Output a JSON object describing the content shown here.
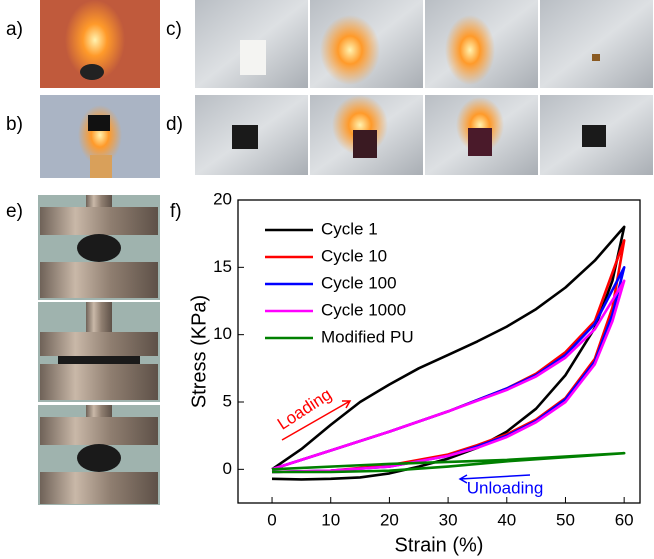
{
  "panel_labels": [
    "a)",
    "b)",
    "c)",
    "d)",
    "e)",
    "f)"
  ],
  "chart_data": {
    "type": "line",
    "xlabel": "Strain (%)",
    "ylabel": "Stress (KPa)",
    "xlim": [
      -5.8,
      62.7
    ],
    "ylim": [
      -2.5,
      20
    ],
    "xticks": [
      0,
      10,
      20,
      30,
      40,
      50,
      60
    ],
    "yticks": [
      0,
      5,
      10,
      15,
      20
    ],
    "annotations": [
      "Loading",
      "Unloading"
    ],
    "series": [
      {
        "name": "Cycle 1",
        "color": "#000000",
        "x": [
          0,
          5,
          10,
          15,
          20,
          25,
          30,
          35,
          40,
          45,
          50,
          55,
          60,
          58,
          55,
          50,
          45,
          40,
          35,
          30,
          25,
          20,
          15,
          10,
          5,
          0
        ],
        "values": [
          0,
          1.5,
          3.3,
          5,
          6.3,
          7.5,
          8.5,
          9.5,
          10.6,
          11.9,
          13.5,
          15.5,
          18,
          14,
          10.5,
          7,
          4.5,
          2.8,
          1.6,
          0.8,
          0.2,
          -0.3,
          -0.6,
          -0.7,
          -0.75,
          -0.7
        ]
      },
      {
        "name": "Cycle 10",
        "color": "#ff0000",
        "x": [
          0,
          10,
          20,
          30,
          40,
          45,
          50,
          55,
          60,
          58,
          55,
          50,
          45,
          40,
          35,
          30,
          20,
          10,
          0
        ],
        "values": [
          0,
          1.4,
          2.8,
          4.3,
          6,
          7.1,
          8.7,
          11,
          17,
          12,
          8.2,
          5.3,
          3.7,
          2.6,
          1.8,
          1.1,
          0.3,
          -0.1,
          -0.2
        ]
      },
      {
        "name": "Cycle 100",
        "color": "#0000ff",
        "x": [
          0,
          10,
          20,
          30,
          40,
          45,
          50,
          55,
          60,
          58,
          55,
          50,
          45,
          40,
          35,
          30,
          20,
          10,
          0
        ],
        "values": [
          0,
          1.4,
          2.8,
          4.3,
          6,
          7,
          8.5,
          10.8,
          15,
          11.5,
          8,
          5.2,
          3.6,
          2.5,
          1.7,
          1,
          0.2,
          -0.1,
          -0.2
        ]
      },
      {
        "name": "Cycle 1000",
        "color": "#ff00ff",
        "x": [
          0,
          10,
          20,
          30,
          40,
          45,
          50,
          55,
          60,
          58,
          55,
          50,
          45,
          40,
          35,
          30,
          20,
          10,
          0
        ],
        "values": [
          0,
          1.4,
          2.8,
          4.3,
          5.9,
          6.9,
          8.3,
          10.4,
          14,
          11,
          7.8,
          5,
          3.5,
          2.4,
          1.6,
          1,
          0.2,
          -0.1,
          -0.2
        ]
      },
      {
        "name": "Modified PU",
        "color": "#008000",
        "x": [
          0,
          20,
          40,
          60,
          50,
          40,
          30,
          20,
          10,
          0
        ],
        "values": [
          0,
          0.4,
          0.7,
          1.2,
          0.9,
          0.6,
          0.2,
          -0.1,
          -0.2,
          -0.2
        ]
      }
    ]
  }
}
